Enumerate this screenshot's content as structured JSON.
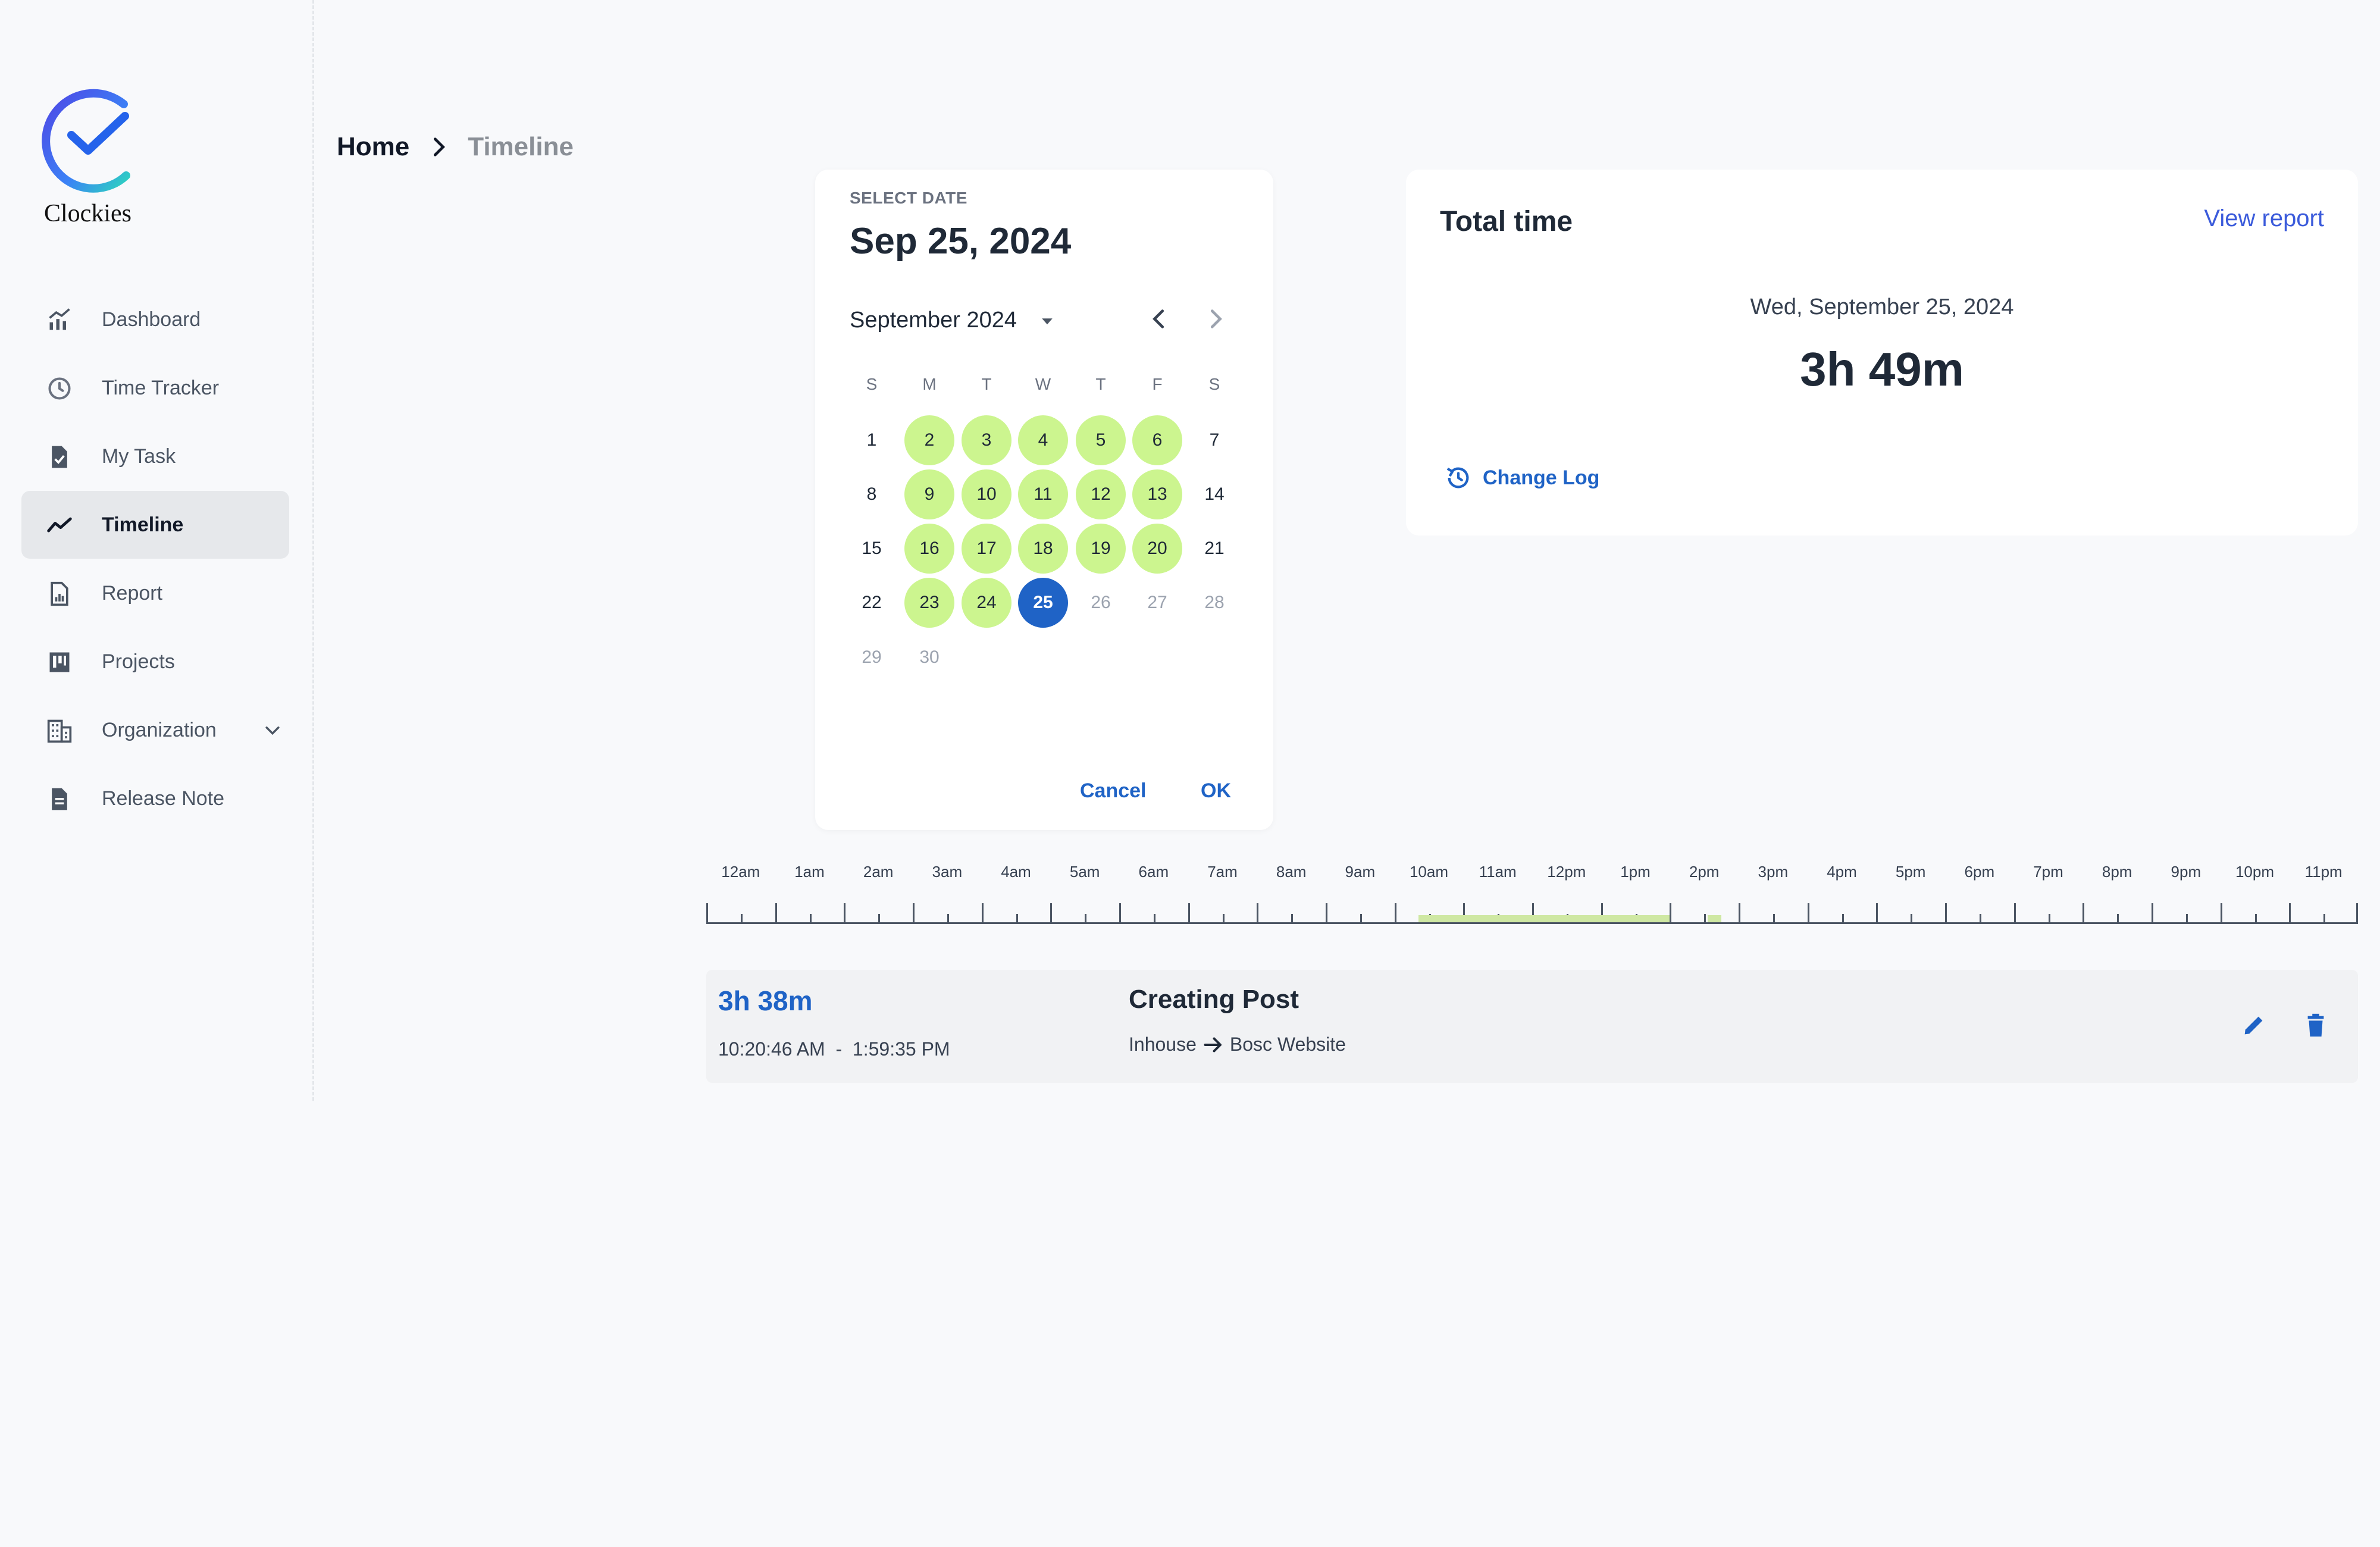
{
  "app": {
    "name": "Clockies"
  },
  "colors": {
    "accent": "#1f63c6",
    "worked_day": "#ccf58f",
    "active_nav_bg": "#e6e8eb",
    "timeline_segment": "#cfe8a3"
  },
  "sidebar": {
    "items": [
      {
        "label": "Dashboard",
        "icon": "chart-icon"
      },
      {
        "label": "Time Tracker",
        "icon": "clock-icon"
      },
      {
        "label": "My Task",
        "icon": "task-icon"
      },
      {
        "label": "Timeline",
        "icon": "timeline-icon",
        "active": true
      },
      {
        "label": "Report",
        "icon": "report-icon"
      },
      {
        "label": "Projects",
        "icon": "projects-icon"
      },
      {
        "label": "Organization",
        "icon": "organization-icon",
        "expandable": true
      },
      {
        "label": "Release Note",
        "icon": "release-note-icon"
      }
    ]
  },
  "breadcrumb": {
    "home": "Home",
    "current": "Timeline"
  },
  "datepicker": {
    "label": "SELECT DATE",
    "selected_date": "Sep 25, 2024",
    "month_label": "September 2024",
    "weekdays": [
      "S",
      "M",
      "T",
      "W",
      "T",
      "F",
      "S"
    ],
    "weeks": [
      [
        {
          "d": "1"
        },
        {
          "d": "2",
          "s": "worked"
        },
        {
          "d": "3",
          "s": "worked"
        },
        {
          "d": "4",
          "s": "worked"
        },
        {
          "d": "5",
          "s": "worked"
        },
        {
          "d": "6",
          "s": "worked"
        },
        {
          "d": "7"
        }
      ],
      [
        {
          "d": "8"
        },
        {
          "d": "9",
          "s": "worked"
        },
        {
          "d": "10",
          "s": "worked"
        },
        {
          "d": "11",
          "s": "worked"
        },
        {
          "d": "12",
          "s": "worked"
        },
        {
          "d": "13",
          "s": "worked"
        },
        {
          "d": "14"
        }
      ],
      [
        {
          "d": "15"
        },
        {
          "d": "16",
          "s": "worked"
        },
        {
          "d": "17",
          "s": "worked"
        },
        {
          "d": "18",
          "s": "worked"
        },
        {
          "d": "19",
          "s": "worked"
        },
        {
          "d": "20",
          "s": "worked"
        },
        {
          "d": "21"
        }
      ],
      [
        {
          "d": "22"
        },
        {
          "d": "23",
          "s": "worked"
        },
        {
          "d": "24",
          "s": "worked"
        },
        {
          "d": "25",
          "s": "selected"
        },
        {
          "d": "26",
          "s": "muted"
        },
        {
          "d": "27",
          "s": "muted"
        },
        {
          "d": "28",
          "s": "muted"
        }
      ],
      [
        {
          "d": "29",
          "s": "muted"
        },
        {
          "d": "30",
          "s": "muted"
        }
      ]
    ],
    "cancel_label": "Cancel",
    "ok_label": "OK"
  },
  "total_time": {
    "title": "Total time",
    "view_report_label": "View report",
    "date": "Wed, September 25, 2024",
    "duration": "3h 49m",
    "change_log_label": "Change Log"
  },
  "timeline": {
    "hour_labels": [
      "12am",
      "1am",
      "2am",
      "3am",
      "4am",
      "5am",
      "6am",
      "7am",
      "8am",
      "9am",
      "10am",
      "11am",
      "12pm",
      "1pm",
      "2pm",
      "3pm",
      "4pm",
      "5pm",
      "6pm",
      "7pm",
      "8pm",
      "9pm",
      "10pm",
      "11pm"
    ],
    "segments": [
      {
        "start_hour": 10.35,
        "end_hour": 14.0
      },
      {
        "start_hour": 14.55,
        "end_hour": 14.75
      }
    ]
  },
  "entries": [
    {
      "duration": "3h 38m",
      "start": "10:20:46 AM",
      "separator": "-",
      "end": "1:59:35 PM",
      "title": "Creating Post",
      "client": "Inhouse",
      "project": "Bosc Website"
    }
  ]
}
